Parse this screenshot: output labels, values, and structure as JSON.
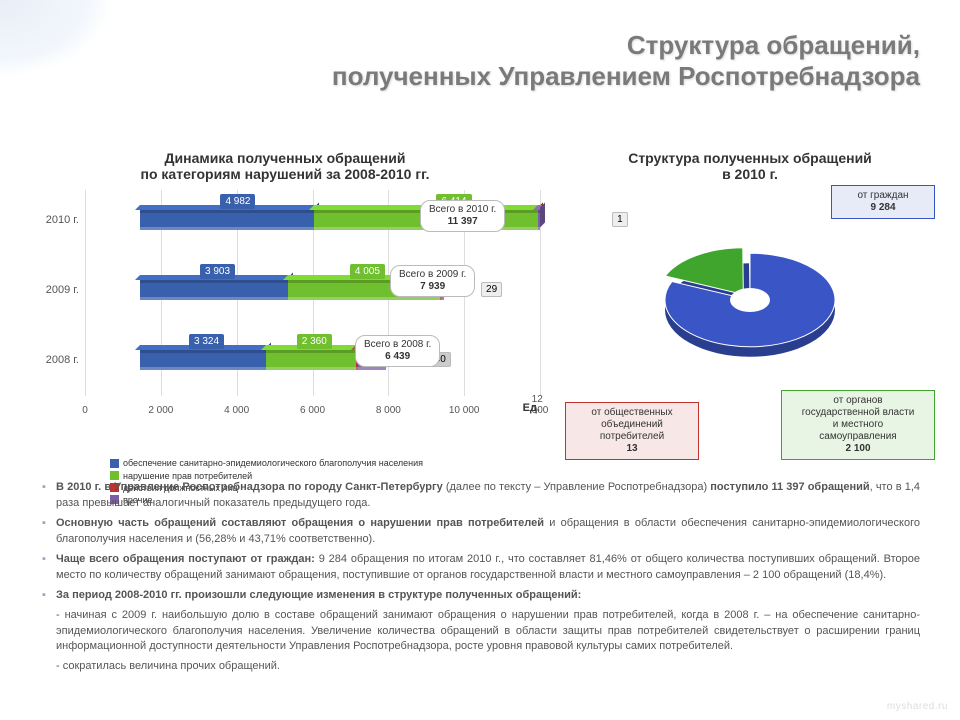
{
  "title": "Структура обращений,\nполученных Управлением Роспотребнадзора",
  "bar_chart": {
    "title": "Динамика полученных обращений\nпо категориям нарушений за 2008-2010 гг.",
    "unit_label": "Ед.",
    "xlim": [
      0,
      12000
    ],
    "xtick_step": 2000,
    "xtick_labels": [
      "0",
      "2 000",
      "4 000",
      "6 000",
      "8 000",
      "10 000",
      "12 000"
    ],
    "categories": [
      "2010 г.",
      "2009 г.",
      "2008 г."
    ],
    "series": [
      {
        "name": "обеспечение санитарно-эпидемиологического благополучия населения",
        "color": "#3960ac"
      },
      {
        "name": "нарушение прав потребителей",
        "color": "#6fbf2e"
      },
      {
        "name": "действия должностных лиц",
        "color": "#c1322d"
      },
      {
        "name": "прочие",
        "color": "#7b5fa6"
      }
    ],
    "rows": [
      {
        "y_label": "2010 г.",
        "values": [
          4982,
          6414,
          0,
          1
        ],
        "labels": [
          "4 982",
          "6 414",
          "",
          "1"
        ],
        "label_colors": [
          "#fff",
          "#fff",
          "",
          "#000"
        ],
        "label_bg": [
          "#3960ac",
          "#6fbf2e",
          "",
          "#eee"
        ]
      },
      {
        "y_label": "2009 г.",
        "values": [
          3903,
          4005,
          2,
          29
        ],
        "labels": [
          "3 903",
          "4 005",
          "2",
          "29"
        ],
        "label_colors": [
          "#fff",
          "#fff",
          "#fff",
          "#000"
        ],
        "label_bg": [
          "#3960ac",
          "#6fbf2e",
          "#c1322d",
          "#eee"
        ]
      },
      {
        "y_label": "2008 г.",
        "values": [
          3324,
          2360,
          15,
          740
        ],
        "labels": [
          "3 324",
          "2 360",
          "15",
          "740"
        ],
        "label_colors": [
          "#fff",
          "#fff",
          "#fff",
          "#000"
        ],
        "label_bg": [
          "#3960ac",
          "#6fbf2e",
          "#c1322d",
          "#ccc"
        ]
      }
    ],
    "totals": [
      {
        "text": "Всего в 2010 г.",
        "value": "11 397"
      },
      {
        "text": "Всего в 2009 г.",
        "value": "7 939"
      },
      {
        "text": "Всего в 2008 г.",
        "value": "6 439"
      }
    ]
  },
  "pie_chart": {
    "title": "Структура полученных обращений\nв 2010 г.",
    "background": "#ffffff",
    "slices": [
      {
        "name": "от граждан",
        "value": 9284,
        "color": "#3a55c6",
        "label": "от граждан\n9 284",
        "border": "#3a55c6",
        "bg": "#e7eaf7"
      },
      {
        "name": "от органов государственной власти и местного самоуправления",
        "value": 2100,
        "color": "#3fa52c",
        "label": "от органов\nгосударственной власти\nи местного\nсамоуправления\n2 100",
        "border": "#3fa52c",
        "bg": "#e8f5e4"
      },
      {
        "name": "от общественных объединений потребителей",
        "value": 13,
        "color": "#c1322d",
        "label": "от общественных\nобъединений\nпотребителей\n13",
        "border": "#c1322d",
        "bg": "#f7e7e7"
      }
    ],
    "total": 11397
  },
  "bullets": [
    "В 2010 г. в Управление Роспотребнадзора по городу Санкт-Петербургу (далее по тексту – Управление Роспотребнадзора) поступило 11 397 обращений, что в 1,4 раза превышает аналогичный показатель предыдущего года.",
    "Основную часть обращений составляют обращения о нарушении прав потребителей и обращения в области обеспечения санитарно-эпидемиологического благополучия населения и (56,28% и 43,71% соответственно).",
    "Чаще всего обращения поступают от граждан: 9 284 обращения по итогам 2010 г., что составляет 81,46% от общего количества поступивших обращений. Второе место по количеству обращений занимают обращения, поступившие от органов государственной власти и местного самоуправления – 2 100 обращений (18,4%).",
    "За период 2008-2010 гг. произошли следующие изменения в структуре полученных обращений:"
  ],
  "sub_bullets": [
    "- начиная с 2009 г. наибольшую долю в составе обращений занимают обращения о нарушении прав потребителей, когда в 2008 г. – на обеспечение санитарно-эпидемиологического благополучия населения. Увеличение количества обращений в области защиты прав потребителей свидетельствует о расширении границ информационной доступности деятельности Управления Роспотребнадзора, росте уровня правовой культуры самих потребителей.",
    "- сократилась величина прочих обращений."
  ],
  "watermark": "myshared.ru"
}
